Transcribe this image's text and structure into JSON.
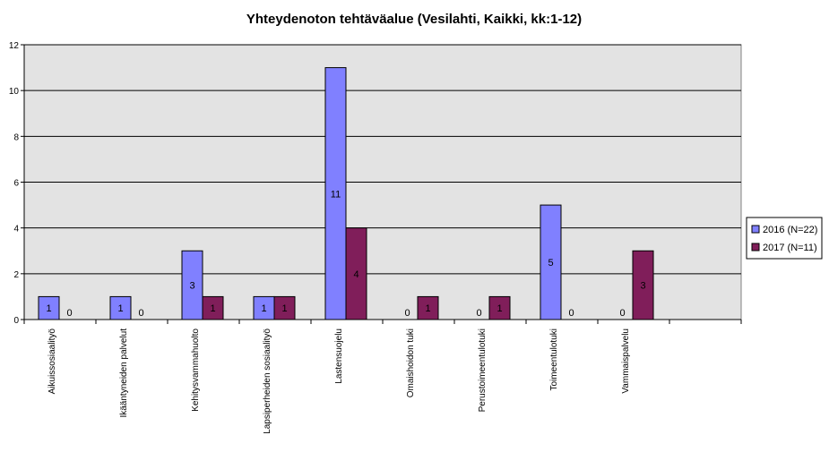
{
  "chart_data": {
    "type": "bar",
    "title": "Yhteydenoton tehtäväalue (Vesilahti, Kaikki, kk:1-12)",
    "xlabel": "",
    "ylabel": "",
    "ylim": [
      0,
      12
    ],
    "yticks": [
      0,
      2,
      4,
      6,
      8,
      10,
      12
    ],
    "grid": true,
    "legend_position": "right",
    "categories": [
      "Aikuissosiaalityö",
      "Ikääntyneiden palvelut",
      "Kehitysvammahuolto",
      "Lapsiperheiden sosiaalityö",
      "Lastensuojelu",
      "Omaishoidon tuki",
      "Perustoimeentulotuki",
      "Toimeentulotuki",
      "Vammaispalvelu"
    ],
    "series": [
      {
        "name": "2016 (N=22)",
        "color": "#8080ff",
        "values": [
          1,
          1,
          3,
          1,
          11,
          0,
          0,
          5,
          0
        ]
      },
      {
        "name": "2017 (N=11)",
        "color": "#801e5a",
        "values": [
          0,
          0,
          1,
          1,
          4,
          1,
          1,
          0,
          3
        ]
      }
    ],
    "plot_background": "#e3e3e3"
  }
}
